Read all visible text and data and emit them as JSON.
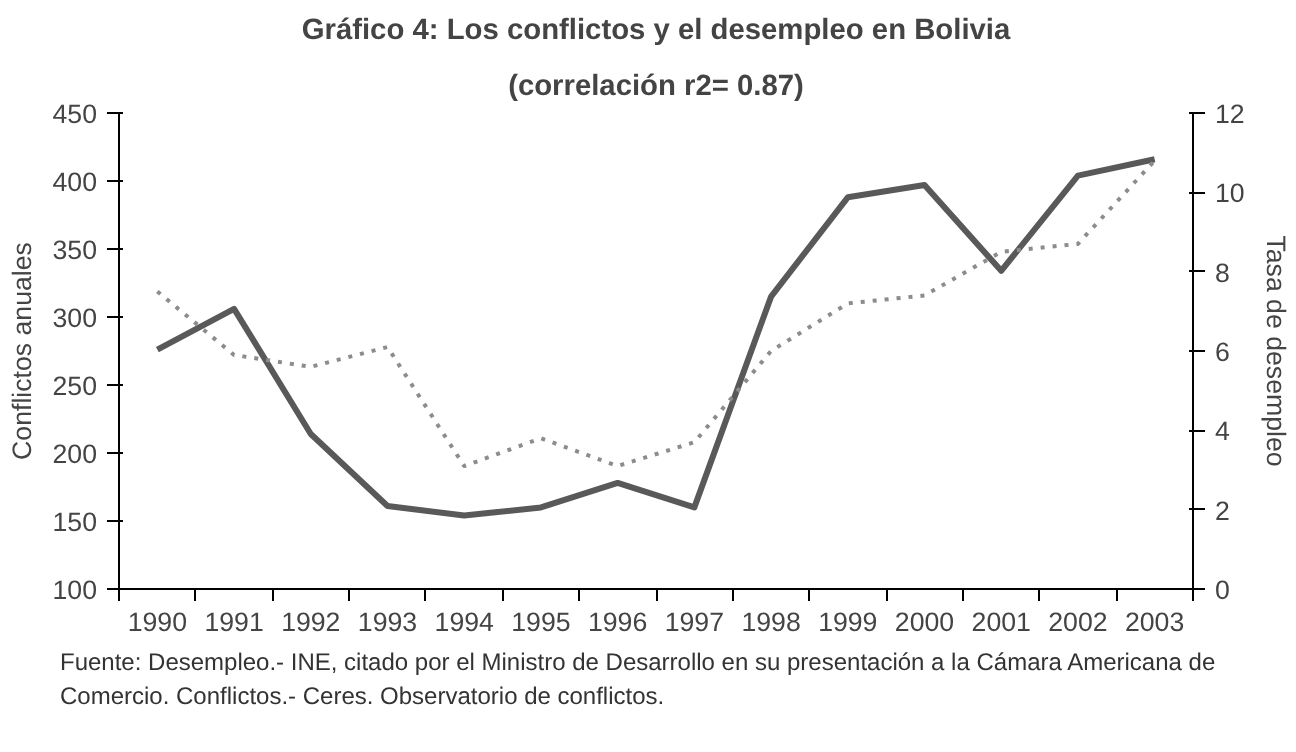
{
  "chart_data": {
    "type": "line",
    "title": "Gráfico 4: Los conflictos y el desempleo en Bolivia",
    "subtitle": "(correlación r2= 0.87)",
    "ylabel": "Conflictos anuales",
    "y2label": "Tasa de desempleo",
    "categories": [
      "1990",
      "1991",
      "1992",
      "1993",
      "1994",
      "1995",
      "1996",
      "1997",
      "1998",
      "1999",
      "2000",
      "2001",
      "2002",
      "2003"
    ],
    "series": [
      {
        "color": "#595959",
        "line_style": "solid",
        "values": [
          276,
          306,
          214,
          161,
          154,
          160,
          178,
          160,
          315,
          388,
          397,
          334,
          404,
          416
        ]
      },
      {
        "color": "#8c8c8c",
        "line_style": "dotted",
        "axis": "y2",
        "values": [
          7.5,
          5.9,
          5.6,
          6.1,
          3.1,
          3.8,
          3.1,
          3.7,
          6.0,
          7.2,
          7.4,
          8.5,
          8.7,
          10.8
        ]
      }
    ],
    "ylim": [
      100,
      450
    ],
    "yticks": [
      100,
      150,
      200,
      250,
      300,
      350,
      400,
      450
    ],
    "y2lim": [
      0,
      12
    ],
    "y2ticks": [
      0,
      2,
      4,
      6,
      8,
      10,
      12
    ],
    "grid": false,
    "marker": "none",
    "annotations": [
      "Fuente: Desempleo.- INE, citado por el Ministro de Desarrollo en su presentación a la Cámara Americana de Comercio. Conflictos.- Ceres. Observatorio de conflictos."
    ]
  }
}
